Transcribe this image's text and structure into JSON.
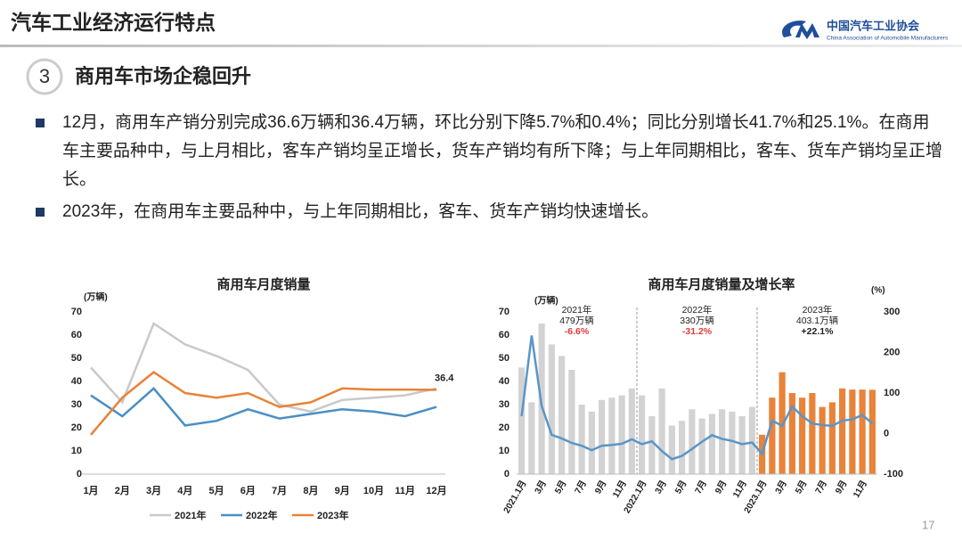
{
  "header": {
    "title": "汽车工业经济运行特点",
    "org_name": "中国汽车工业协会",
    "org_name_en": "China Association of Automobile Manufacturers"
  },
  "section": {
    "number": "3",
    "title": "商用车市场企稳回升"
  },
  "bullets": [
    "12月，商用车产销分别完成36.6万辆和36.4万辆，环比分别下降5.7%和0.4%；同比分别增长41.7%和25.1%。在商用车主要品种中，与上月相比，客车产销均呈正增长，货车产销均有所下降；与上年同期相比，客车、货车产销均呈正增长。",
    "2023年，在商用车主要品种中，与上年同期相比，客车、货车产销均快速增长。"
  ],
  "page_number": "17",
  "chart_data": [
    {
      "type": "line",
      "title": "商用车月度销量",
      "y_label": "(万辆)",
      "categories": [
        "1月",
        "2月",
        "3月",
        "4月",
        "5月",
        "6月",
        "7月",
        "8月",
        "9月",
        "10月",
        "11月",
        "12月"
      ],
      "ylim": [
        0,
        70
      ],
      "yticks": [
        0,
        10,
        20,
        30,
        40,
        50,
        60,
        70
      ],
      "legend": "bottom",
      "show_last_value": true,
      "series": [
        {
          "name": "2021年",
          "color": "#c9c9c9",
          "values": [
            46,
            31,
            65,
            56,
            51,
            45,
            30,
            27,
            32,
            33,
            34,
            37
          ]
        },
        {
          "name": "2022年",
          "color": "#4a8fc4",
          "values": [
            34,
            25,
            37,
            21,
            23,
            28,
            24,
            26,
            28,
            27,
            25,
            29
          ]
        },
        {
          "name": "2023年",
          "color": "#e8833a",
          "values": [
            17,
            33,
            44,
            35,
            33,
            35,
            29,
            31,
            37,
            36.5,
            36.5,
            36.4
          ]
        }
      ]
    },
    {
      "type": "combo",
      "title": "商用车月度销量及增长率",
      "y_label": "(万辆)",
      "y2_label": "(%)",
      "categories": [
        "2021.1月",
        null,
        "3月",
        null,
        "5月",
        null,
        "7月",
        null,
        "9月",
        null,
        "11月",
        null,
        "2022.1月",
        null,
        "3月",
        null,
        "5月",
        null,
        "7月",
        null,
        "9月",
        null,
        "11月",
        null,
        "2023.1月",
        null,
        "3月",
        null,
        "5月",
        null,
        "7月",
        null,
        "9月",
        null,
        "11月",
        null
      ],
      "ylim": [
        0,
        70
      ],
      "yticks": [
        0,
        10,
        20,
        30,
        40,
        50,
        60,
        70
      ],
      "y2lim": [
        -100,
        300
      ],
      "y2ticks": [
        -100,
        0,
        100,
        200,
        300
      ],
      "annotations": [
        {
          "lines": [
            "2021年",
            "479万辆",
            "-6.6%"
          ],
          "color": "#e03a3a"
        },
        {
          "lines": [
            "2022年",
            "330万辆",
            "-31.2%"
          ],
          "color": "#e03a3a"
        },
        {
          "lines": [
            "2023年",
            "403.1万辆",
            "+22.1%"
          ],
          "color": "#222222"
        }
      ],
      "series": [
        {
          "type": "bar",
          "color": "#d3d3d3",
          "values": [
            46,
            31,
            65,
            56,
            51,
            45,
            30,
            27,
            32,
            33,
            34,
            37,
            34,
            25,
            37,
            21,
            23,
            28,
            24,
            26,
            28,
            27,
            25,
            29,
            null,
            null,
            null,
            null,
            null,
            null,
            null,
            null,
            null,
            null,
            null,
            null
          ]
        },
        {
          "type": "bar",
          "color": "#e8833a",
          "values": [
            null,
            null,
            null,
            null,
            null,
            null,
            null,
            null,
            null,
            null,
            null,
            null,
            null,
            null,
            null,
            null,
            null,
            null,
            null,
            null,
            null,
            null,
            null,
            null,
            17,
            33,
            44,
            35,
            33,
            35,
            29,
            31,
            37,
            36.5,
            36.5,
            36.4
          ]
        },
        {
          "type": "line",
          "axis": "y2",
          "color": "#5a95c8",
          "values": [
            43,
            242,
            68,
            -3,
            -12,
            -23,
            -30,
            -41,
            -30,
            -28,
            -25,
            -14,
            -26,
            -19,
            -43,
            -63,
            -55,
            -38,
            -20,
            -4,
            -13,
            -18,
            -26,
            -22,
            -50,
            32,
            19,
            67,
            43,
            25,
            21,
            19,
            32,
            35,
            46,
            25
          ]
        }
      ]
    }
  ]
}
